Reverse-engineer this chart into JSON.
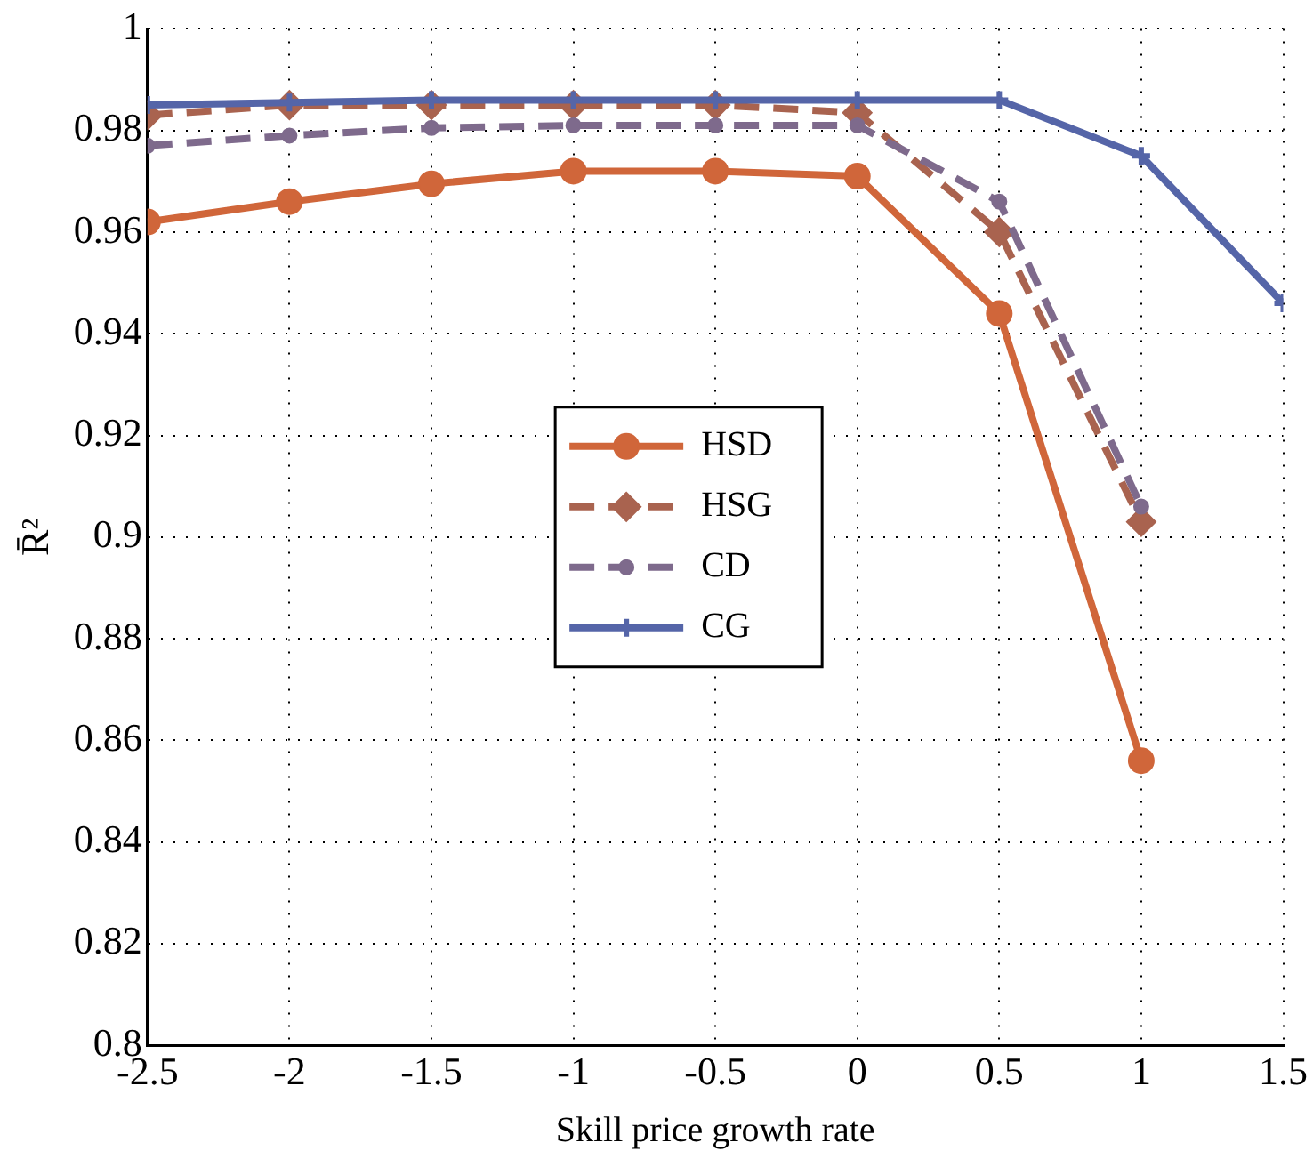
{
  "chart_data": {
    "type": "line",
    "xlabel": "Skill price growth rate",
    "ylabel": "R̄²",
    "x": [
      -2.5,
      -2,
      -1.5,
      -1,
      -0.5,
      0,
      0.5,
      1,
      1.5
    ],
    "series": [
      {
        "name": "HSD",
        "color": "#d0663a",
        "marker": "circle",
        "line_style": "solid",
        "values": [
          0.962,
          0.966,
          0.9695,
          0.972,
          0.972,
          0.971,
          0.944,
          0.856,
          null
        ]
      },
      {
        "name": "HSG",
        "color": "#a9634f",
        "marker": "diamond",
        "line_style": "dashed",
        "values": [
          0.983,
          0.985,
          0.985,
          0.985,
          0.985,
          0.9835,
          0.96,
          0.903,
          null
        ]
      },
      {
        "name": "CD",
        "color": "#7e6a8c",
        "marker": "circle",
        "line_style": "dashed",
        "values": [
          0.977,
          0.979,
          0.9805,
          0.981,
          0.981,
          0.981,
          0.966,
          0.906,
          null
        ]
      },
      {
        "name": "CG",
        "color": "#5565a8",
        "marker": "cross",
        "line_style": "solid",
        "values": [
          0.985,
          0.9855,
          0.986,
          0.986,
          0.986,
          0.986,
          0.986,
          0.975,
          0.946
        ]
      }
    ],
    "xlim": [
      -2.5,
      1.5
    ],
    "xticks": [
      -2.5,
      -2,
      -1.5,
      -1,
      -0.5,
      0,
      0.5,
      1,
      1.5
    ],
    "ylim": [
      0.8,
      1
    ],
    "yticks": [
      0.8,
      0.82,
      0.84,
      0.86,
      0.88,
      0.9,
      0.92,
      0.94,
      0.96,
      0.98,
      1
    ],
    "grid": true,
    "legend": "center"
  }
}
